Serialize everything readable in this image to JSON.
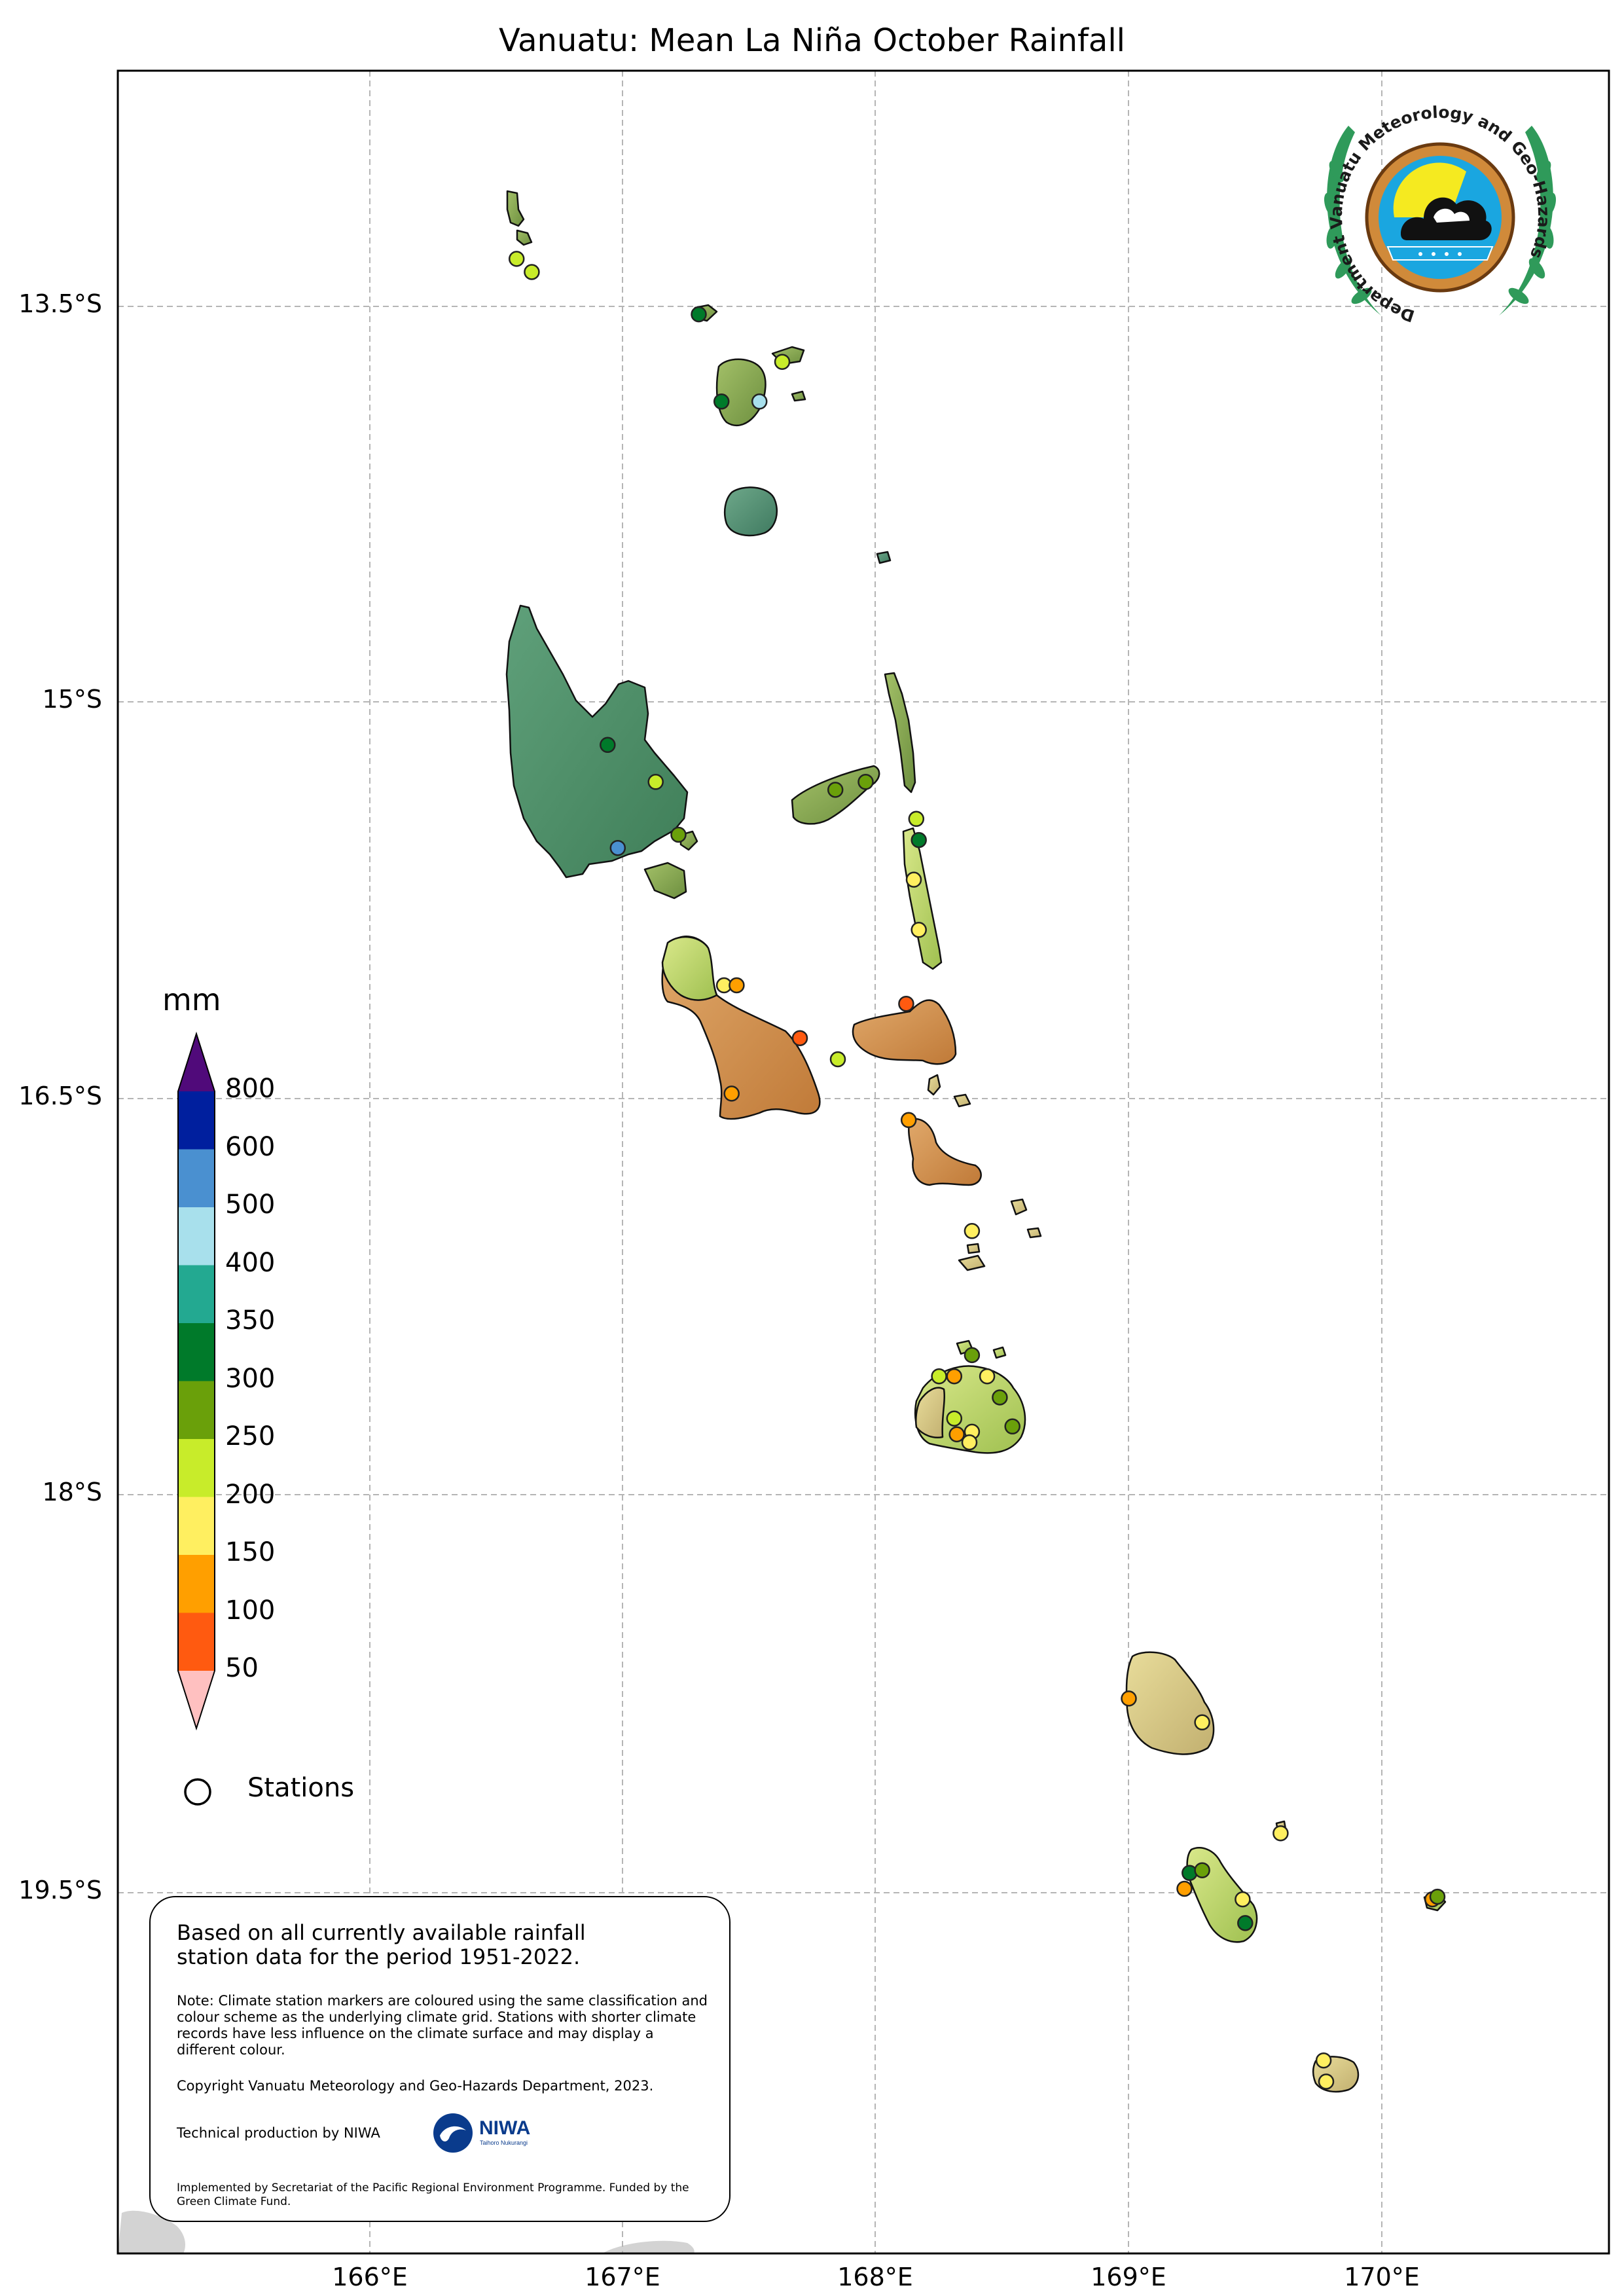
{
  "map": {
    "title": "Vanuatu: Mean La Niña October Rainfall",
    "lat_labels": [
      "13.5°S",
      "15°S",
      "16.5°S",
      "18°S",
      "19.5°S"
    ],
    "lon_labels": [
      "166°E",
      "167°E",
      "168°E",
      "169°E",
      "170°E"
    ],
    "extent": {
      "lon_min": 165.0,
      "lon_max": 170.9,
      "lat_min": -20.9,
      "lat_max": -12.6
    }
  },
  "colorbar": {
    "unit": "mm",
    "ticks": [
      "800",
      "600",
      "500",
      "400",
      "350",
      "300",
      "250",
      "200",
      "150",
      "100",
      "50"
    ],
    "colors": [
      "#001f9e",
      "#4a90d0",
      "#a8e0ec",
      "#23a991",
      "#007a2a",
      "#6aa00a",
      "#c8ec2a",
      "#ffef60",
      "#ff9f00",
      "#ff5a10"
    ],
    "over_color": "#500a7a",
    "under_color": "#ffc0c0"
  },
  "legend": {
    "stations_label": "Stations"
  },
  "info": {
    "main_text": "Based on all currently available rainfall station data for the period 1951-2022.",
    "note_text": "Note: Climate station markers are coloured using the same classification and colour scheme as the underlying climate grid. Stations with shorter climate records have less influence on the climate surface and may display a different colour.",
    "copyright": "Copyright Vanuatu Meteorology and Geo-Hazards Department, 2023.",
    "technical": "Technical production by NIWA",
    "implemented": "Implemented by Secretariat of the Pacific Regional Environment Programme. Funded by the Green Climate Fund.",
    "niwa_name": "NIWA",
    "niwa_tagline": "Taihoro Nukurangi"
  },
  "logo": {
    "text": "Department Vanuatu Meteorology and Geo-Hazards"
  },
  "stations": [
    {
      "lon": 166.58,
      "lat": -13.32,
      "color": "#c8ec2a"
    },
    {
      "lon": 166.64,
      "lat": -13.37,
      "color": "#c8ec2a"
    },
    {
      "lon": 167.3,
      "lat": -13.53,
      "color": "#007a2a"
    },
    {
      "lon": 167.63,
      "lat": -13.71,
      "color": "#c8ec2a"
    },
    {
      "lon": 167.39,
      "lat": -13.86,
      "color": "#007a2a"
    },
    {
      "lon": 167.54,
      "lat": -13.86,
      "color": "#a8e0ec"
    },
    {
      "lon": 166.94,
      "lat": -15.16,
      "color": "#007a2a"
    },
    {
      "lon": 167.13,
      "lat": -15.3,
      "color": "#c8ec2a"
    },
    {
      "lon": 167.22,
      "lat": -15.5,
      "color": "#6aa00a"
    },
    {
      "lon": 166.98,
      "lat": -15.55,
      "color": "#4a90d0"
    },
    {
      "lon": 167.84,
      "lat": -15.33,
      "color": "#6aa00a"
    },
    {
      "lon": 167.96,
      "lat": -15.3,
      "color": "#6aa00a"
    },
    {
      "lon": 168.16,
      "lat": -15.44,
      "color": "#c8ec2a"
    },
    {
      "lon": 168.17,
      "lat": -15.52,
      "color": "#007a2a"
    },
    {
      "lon": 168.15,
      "lat": -15.67,
      "color": "#ffef60"
    },
    {
      "lon": 168.17,
      "lat": -15.86,
      "color": "#ffef60"
    },
    {
      "lon": 167.4,
      "lat": -16.07,
      "color": "#ffef60"
    },
    {
      "lon": 167.45,
      "lat": -16.07,
      "color": "#ff9f00"
    },
    {
      "lon": 167.7,
      "lat": -16.27,
      "color": "#ff5a10"
    },
    {
      "lon": 167.85,
      "lat": -16.35,
      "color": "#c8ec2a"
    },
    {
      "lon": 167.43,
      "lat": -16.48,
      "color": "#ff9f00"
    },
    {
      "lon": 168.12,
      "lat": -16.14,
      "color": "#ff5a10"
    },
    {
      "lon": 168.13,
      "lat": -16.58,
      "color": "#ff9f00"
    },
    {
      "lon": 168.38,
      "lat": -17.0,
      "color": "#ffef60"
    },
    {
      "lon": 168.38,
      "lat": -17.47,
      "color": "#6aa00a"
    },
    {
      "lon": 168.25,
      "lat": -17.55,
      "color": "#c8ec2a"
    },
    {
      "lon": 168.31,
      "lat": -17.55,
      "color": "#ff9f00"
    },
    {
      "lon": 168.44,
      "lat": -17.55,
      "color": "#ffef60"
    },
    {
      "lon": 168.49,
      "lat": -17.63,
      "color": "#6aa00a"
    },
    {
      "lon": 168.31,
      "lat": -17.71,
      "color": "#c8ec2a"
    },
    {
      "lon": 168.32,
      "lat": -17.77,
      "color": "#ff9f00"
    },
    {
      "lon": 168.38,
      "lat": -17.76,
      "color": "#ffef60"
    },
    {
      "lon": 168.37,
      "lat": -17.8,
      "color": "#ffef60"
    },
    {
      "lon": 168.54,
      "lat": -17.74,
      "color": "#6aa00a"
    },
    {
      "lon": 169.0,
      "lat": -18.77,
      "color": "#ff9f00"
    },
    {
      "lon": 169.29,
      "lat": -18.86,
      "color": "#ffef60"
    },
    {
      "lon": 169.6,
      "lat": -19.28,
      "color": "#ffef60"
    },
    {
      "lon": 169.24,
      "lat": -19.43,
      "color": "#007a2a"
    },
    {
      "lon": 169.29,
      "lat": -19.42,
      "color": "#6aa00a"
    },
    {
      "lon": 169.22,
      "lat": -19.49,
      "color": "#ff9f00"
    },
    {
      "lon": 169.45,
      "lat": -19.53,
      "color": "#ffef60"
    },
    {
      "lon": 169.46,
      "lat": -19.62,
      "color": "#007a2a"
    },
    {
      "lon": 170.2,
      "lat": -19.53,
      "color": "#ff9f00"
    },
    {
      "lon": 170.22,
      "lat": -19.52,
      "color": "#6aa00a"
    },
    {
      "lon": 169.77,
      "lat": -20.14,
      "color": "#ffef60"
    },
    {
      "lon": 169.78,
      "lat": -20.22,
      "color": "#ffef60"
    }
  ]
}
